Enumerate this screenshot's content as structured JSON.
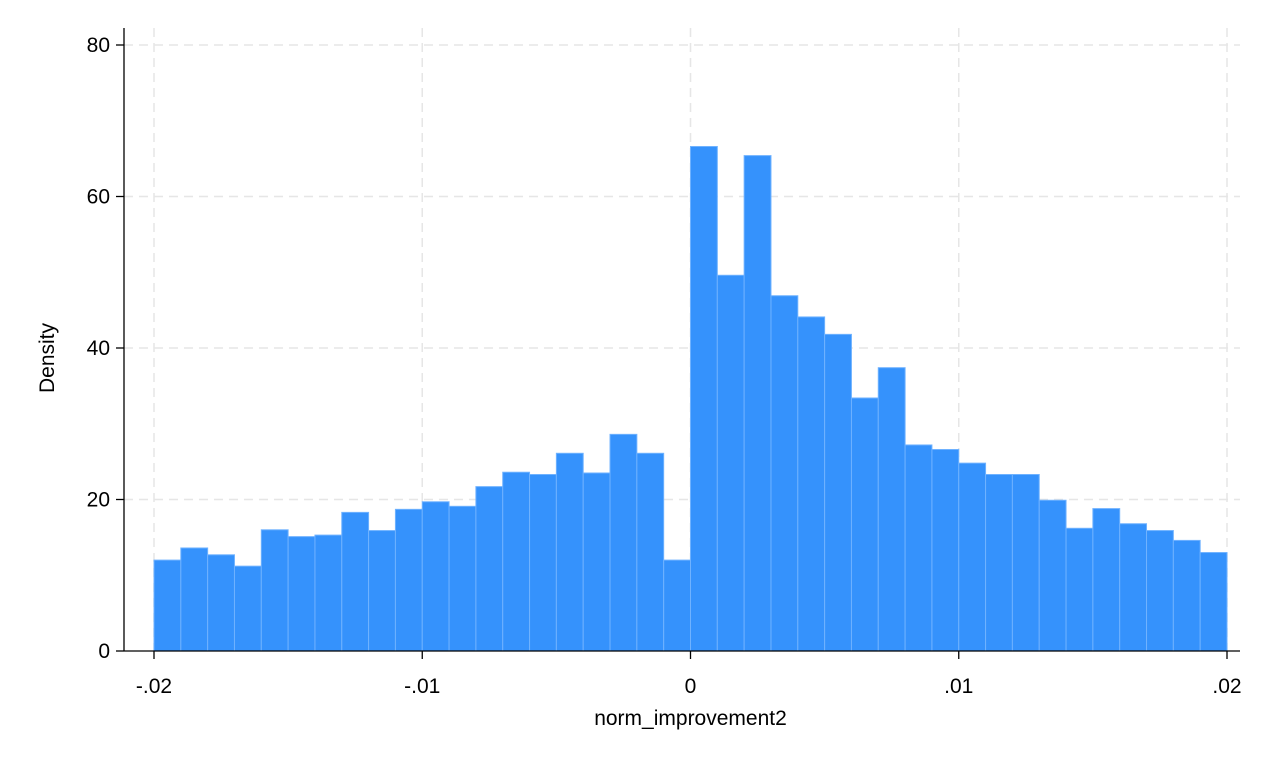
{
  "chart_data": {
    "type": "bar",
    "title": "",
    "xlabel": "norm_improvement2",
    "ylabel": "Density",
    "xlim": [
      -0.02,
      0.02
    ],
    "ylim": [
      0,
      80
    ],
    "x_ticks": [
      {
        "value": -0.02,
        "label": "-.02"
      },
      {
        "value": -0.01,
        "label": "-.01"
      },
      {
        "value": 0,
        "label": "0"
      },
      {
        "value": 0.01,
        "label": ".01"
      },
      {
        "value": 0.02,
        "label": ".02"
      }
    ],
    "y_ticks": [
      {
        "value": 0,
        "label": "0"
      },
      {
        "value": 20,
        "label": "20"
      },
      {
        "value": 40,
        "label": "40"
      },
      {
        "value": 60,
        "label": "60"
      },
      {
        "value": 80,
        "label": "80"
      }
    ],
    "grid": true,
    "bar_color": "#3592fc",
    "bar_edge_color": "#6fb2ff",
    "bin_width": 0.001,
    "bin_start": -0.02,
    "values": [
      12.0,
      13.6,
      12.7,
      11.2,
      16.0,
      15.1,
      15.3,
      18.3,
      15.9,
      18.7,
      19.7,
      19.1,
      21.7,
      23.6,
      23.3,
      26.1,
      23.5,
      28.6,
      26.1,
      12.0,
      66.6,
      49.6,
      65.4,
      46.9,
      44.1,
      41.8,
      33.4,
      37.4,
      27.2,
      26.6,
      24.8,
      23.3,
      23.3,
      19.9,
      16.2,
      18.8,
      16.8,
      15.9,
      14.6,
      13.0
    ]
  }
}
